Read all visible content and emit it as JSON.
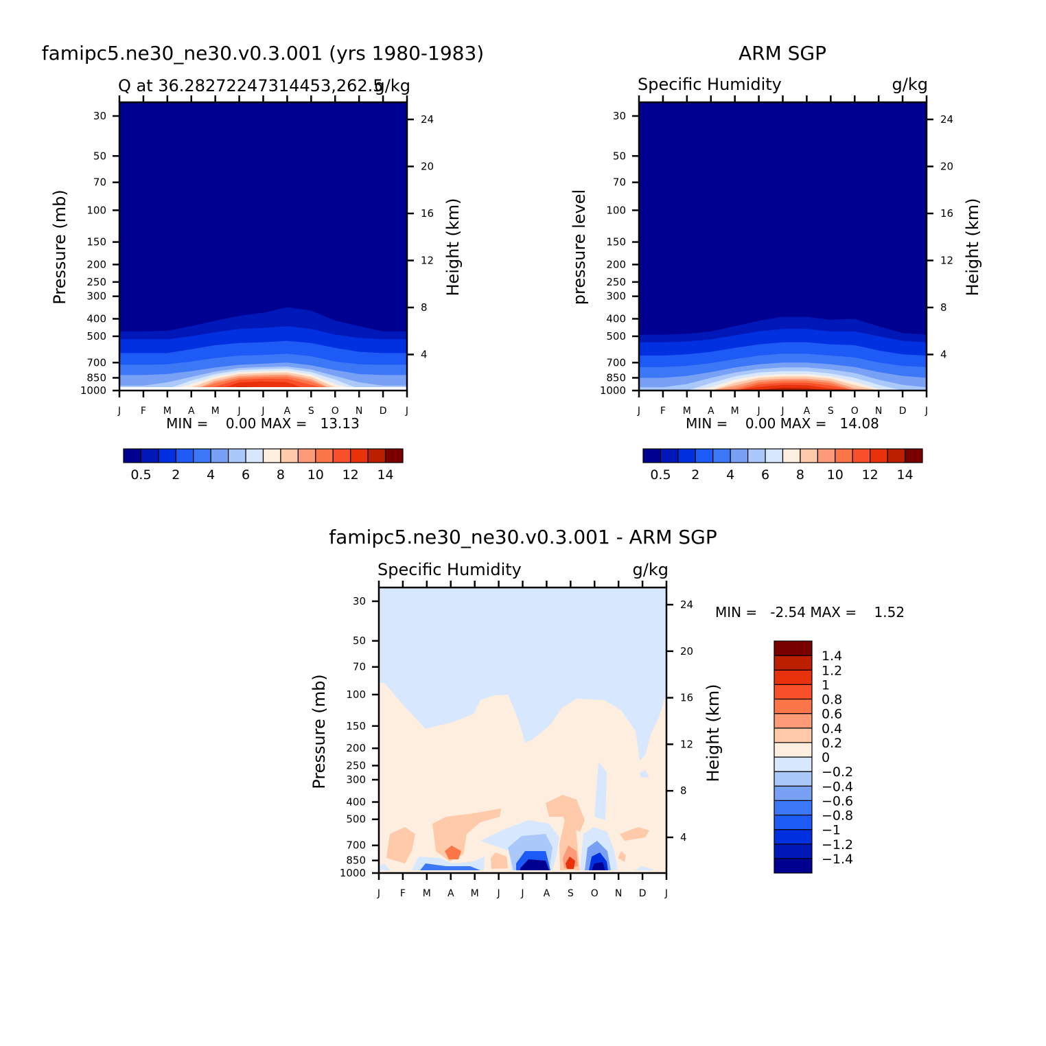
{
  "figure": {
    "panel_model": {
      "title": "famipc5.ne30_ne30.v0.3.001 (yrs 1980-1983)",
      "left_subtitle": "Q at 36.28272247314453,262.5",
      "right_subtitle": "g/kg",
      "ylabel_left": "Pressure (mb)",
      "ylabel_right": "Height (km)",
      "min_max_text": "MIN =    0.00 MAX =   13.13"
    },
    "panel_obs": {
      "title": "ARM SGP",
      "left_subtitle": "Specific Humidity",
      "right_subtitle": "g/kg",
      "ylabel_left": "pressure level",
      "ylabel_right": "Height (km)",
      "min_max_text": "MIN =    0.00 MAX =   14.08"
    },
    "panel_diff": {
      "title": "famipc5.ne30_ne30.v0.3.001 - ARM SGP",
      "left_subtitle": "Specific Humidity",
      "right_subtitle": "g/kg",
      "ylabel_left": "Pressure (mb)",
      "ylabel_right": "Height (km)",
      "min_max_text": "MIN =   -2.54 MAX =    1.52"
    }
  },
  "chart_data": [
    {
      "type": "heatmap",
      "title": "famipc5.ne30_ne30.v0.3.001 (yrs 1980-1983)",
      "variable": "Q at 36.28272247314453,262.5",
      "units": "g/kg",
      "xlabel": "",
      "ylabel": "Pressure (mb)",
      "ylabel_right": "Height (km)",
      "x_ticks": [
        "J",
        "F",
        "M",
        "A",
        "M",
        "J",
        "J",
        "A",
        "S",
        "O",
        "N",
        "D",
        "J"
      ],
      "y_ticks": [
        30,
        50,
        70,
        100,
        150,
        200,
        250,
        300,
        400,
        500,
        700,
        850,
        1000
      ],
      "y_right_ticks": [
        4,
        8,
        12,
        16,
        20,
        24
      ],
      "y_scale": "log pressure",
      "min": 0.0,
      "max": 13.13,
      "contour_levels": [
        0.5,
        1,
        2,
        3,
        4,
        5,
        6,
        7,
        8,
        9,
        10,
        11,
        12,
        13,
        14
      ],
      "colorbar_labels": [
        "0.5",
        "2",
        "4",
        "6",
        "8",
        "10",
        "12",
        "14"
      ],
      "colors": [
        "#000090",
        "#0018b8",
        "#0030e0",
        "#1e5af5",
        "#3c78f5",
        "#78a0f5",
        "#aac8fa",
        "#d7e8fe",
        "#feeee0",
        "#fecaaa",
        "#fd9a78",
        "#fb7648",
        "#f8502a",
        "#e8320c",
        "#bc2000",
        "#7a0000"
      ],
      "contour_lines_pressure_mb": [
        {
          "level": 0.5,
          "p": [
            470,
            470,
            465,
            440,
            410,
            385,
            370,
            345,
            360,
            410,
            440,
            470,
            470
          ]
        },
        {
          "level": 1,
          "p": [
            520,
            520,
            520,
            500,
            475,
            455,
            450,
            440,
            455,
            490,
            510,
            520,
            520
          ]
        },
        {
          "level": 2,
          "p": [
            620,
            620,
            620,
            590,
            560,
            545,
            540,
            530,
            545,
            580,
            610,
            620,
            620
          ]
        },
        {
          "level": 3,
          "p": [
            720,
            720,
            715,
            690,
            660,
            640,
            635,
            625,
            645,
            690,
            715,
            720,
            720
          ]
        },
        {
          "level": 4,
          "p": [
            820,
            820,
            810,
            780,
            745,
            720,
            710,
            700,
            725,
            770,
            810,
            820,
            820
          ]
        },
        {
          "level": 5,
          "p": [
            940,
            940,
            900,
            840,
            785,
            750,
            740,
            735,
            765,
            830,
            900,
            940,
            940
          ]
        },
        {
          "level": 6,
          "p": [
            1000,
            1000,
            980,
            880,
            810,
            770,
            760,
            755,
            790,
            870,
            980,
            1000,
            1000
          ]
        },
        {
          "level": 7,
          "p": [
            1000,
            1000,
            1000,
            920,
            835,
            790,
            780,
            775,
            815,
            920,
            1000,
            1000,
            1000
          ]
        },
        {
          "level": 8,
          "p": [
            1000,
            1000,
            1000,
            960,
            860,
            810,
            800,
            795,
            840,
            960,
            1000,
            1000,
            1000
          ]
        },
        {
          "level": 9,
          "p": [
            1000,
            1000,
            1000,
            1000,
            885,
            830,
            820,
            815,
            865,
            1000,
            1000,
            1000,
            1000
          ]
        },
        {
          "level": 10,
          "p": [
            1000,
            1000,
            1000,
            1000,
            910,
            850,
            840,
            835,
            890,
            1000,
            1000,
            1000,
            1000
          ]
        },
        {
          "level": 11,
          "p": [
            1000,
            1000,
            1000,
            1000,
            950,
            870,
            860,
            860,
            930,
            1000,
            1000,
            1000,
            1000
          ]
        },
        {
          "level": 12,
          "p": [
            1000,
            1000,
            1000,
            1000,
            1000,
            900,
            890,
            900,
            1000,
            1000,
            1000,
            1000,
            1000
          ]
        },
        {
          "level": 13,
          "p": [
            1000,
            1000,
            1000,
            1000,
            1000,
            950,
            960,
            1000,
            1000,
            1000,
            1000,
            1000,
            1000
          ]
        }
      ]
    },
    {
      "type": "heatmap",
      "title": "ARM SGP",
      "variable": "Specific Humidity",
      "units": "g/kg",
      "xlabel": "",
      "ylabel": "pressure level",
      "ylabel_right": "Height (km)",
      "x_ticks": [
        "J",
        "F",
        "M",
        "A",
        "M",
        "J",
        "J",
        "A",
        "S",
        "O",
        "N",
        "D",
        "J"
      ],
      "y_ticks": [
        30,
        50,
        70,
        100,
        150,
        200,
        250,
        300,
        400,
        500,
        700,
        850,
        1000
      ],
      "y_right_ticks": [
        4,
        8,
        12,
        16,
        20,
        24
      ],
      "y_scale": "log pressure",
      "min": 0.0,
      "max": 14.08,
      "contour_levels": [
        0.5,
        1,
        2,
        3,
        4,
        5,
        6,
        7,
        8,
        9,
        10,
        11,
        12,
        13,
        14
      ],
      "colorbar_labels": [
        "0.5",
        "2",
        "4",
        "6",
        "8",
        "10",
        "12",
        "14"
      ],
      "colors": [
        "#000090",
        "#0018b8",
        "#0030e0",
        "#1e5af5",
        "#3c78f5",
        "#78a0f5",
        "#aac8fa",
        "#d7e8fe",
        "#feeee0",
        "#fecaaa",
        "#fd9a78",
        "#fb7648",
        "#f8502a",
        "#e8320c",
        "#bc2000",
        "#7a0000"
      ],
      "contour_lines_pressure_mb": [
        {
          "level": 0.5,
          "p": [
            490,
            490,
            485,
            470,
            440,
            410,
            390,
            390,
            405,
            400,
            440,
            480,
            490
          ]
        },
        {
          "level": 1,
          "p": [
            540,
            540,
            535,
            520,
            495,
            470,
            455,
            455,
            470,
            470,
            500,
            530,
            540
          ]
        },
        {
          "level": 2,
          "p": [
            640,
            640,
            630,
            610,
            580,
            555,
            540,
            540,
            555,
            560,
            600,
            630,
            640
          ]
        },
        {
          "level": 3,
          "p": [
            740,
            740,
            730,
            705,
            670,
            640,
            625,
            625,
            640,
            655,
            700,
            730,
            740
          ]
        },
        {
          "level": 4,
          "p": [
            850,
            850,
            830,
            790,
            745,
            715,
            700,
            700,
            715,
            740,
            790,
            830,
            850
          ]
        },
        {
          "level": 5,
          "p": [
            960,
            960,
            920,
            850,
            795,
            760,
            745,
            745,
            765,
            800,
            870,
            930,
            960
          ]
        },
        {
          "level": 6,
          "p": [
            1000,
            1000,
            1000,
            910,
            835,
            795,
            780,
            780,
            805,
            850,
            930,
            1000,
            1000
          ]
        },
        {
          "level": 7,
          "p": [
            1000,
            1000,
            1000,
            960,
            870,
            825,
            810,
            810,
            835,
            895,
            980,
            1000,
            1000
          ]
        },
        {
          "level": 8,
          "p": [
            1000,
            1000,
            1000,
            1000,
            905,
            850,
            835,
            835,
            860,
            935,
            1000,
            1000,
            1000
          ]
        },
        {
          "level": 9,
          "p": [
            1000,
            1000,
            1000,
            1000,
            940,
            875,
            860,
            860,
            885,
            975,
            1000,
            1000,
            1000
          ]
        },
        {
          "level": 10,
          "p": [
            1000,
            1000,
            1000,
            1000,
            975,
            900,
            880,
            880,
            910,
            1000,
            1000,
            1000,
            1000
          ]
        },
        {
          "level": 11,
          "p": [
            1000,
            1000,
            1000,
            1000,
            1000,
            925,
            905,
            905,
            940,
            1000,
            1000,
            1000,
            1000
          ]
        },
        {
          "level": 12,
          "p": [
            1000,
            1000,
            1000,
            1000,
            1000,
            955,
            930,
            935,
            975,
            1000,
            1000,
            1000,
            1000
          ]
        },
        {
          "level": 13,
          "p": [
            1000,
            1000,
            1000,
            1000,
            1000,
            990,
            965,
            970,
            1000,
            1000,
            1000,
            1000,
            1000
          ]
        },
        {
          "level": 14,
          "p": [
            1000,
            1000,
            1000,
            1000,
            1000,
            1000,
            995,
            1000,
            1000,
            1000,
            1000,
            1000,
            1000
          ]
        }
      ]
    },
    {
      "type": "heatmap",
      "title": "famipc5.ne30_ne30.v0.3.001 - ARM SGP",
      "variable": "Specific Humidity",
      "units": "g/kg",
      "xlabel": "",
      "ylabel": "Pressure (mb)",
      "ylabel_right": "Height (km)",
      "x_ticks": [
        "J",
        "F",
        "M",
        "A",
        "M",
        "J",
        "J",
        "A",
        "S",
        "O",
        "N",
        "D",
        "J"
      ],
      "y_ticks": [
        30,
        50,
        70,
        100,
        150,
        200,
        250,
        300,
        400,
        500,
        700,
        850,
        1000
      ],
      "y_right_ticks": [
        4,
        8,
        12,
        16,
        20,
        24
      ],
      "y_scale": "log pressure",
      "min": -2.54,
      "max": 1.52,
      "contour_levels": [
        -1.4,
        -1.2,
        -1,
        -0.8,
        -0.6,
        -0.4,
        -0.2,
        0,
        0.2,
        0.4,
        0.6,
        0.8,
        1,
        1.2,
        1.4
      ],
      "colorbar_labels": [
        "1.4",
        "1.2",
        "1",
        "0.8",
        "0.6",
        "0.4",
        "0.2",
        "0",
        "−0.2",
        "−0.4",
        "−0.6",
        "−0.8",
        "−1",
        "−1.2",
        "−1.4"
      ],
      "colors": [
        "#000090",
        "#0018b8",
        "#0030e0",
        "#1e5af5",
        "#3c78f5",
        "#78a0f5",
        "#aac8fa",
        "#d7e8fe",
        "#feeee0",
        "#fecaaa",
        "#fd9a78",
        "#fb7648",
        "#f8502a",
        "#e8320c",
        "#bc2000",
        "#7a0000"
      ],
      "zero_contour_pressure_mb": [
        {
          "x": 0.0,
          "p": 85
        },
        {
          "x": 1.5,
          "p": 120
        },
        {
          "x": 2.0,
          "p": 150
        },
        {
          "x": 3.0,
          "p": 135
        },
        {
          "x": 4.0,
          "p": 100
        },
        {
          "x": 5.0,
          "p": 105
        },
        {
          "x": 5.8,
          "p": 180
        },
        {
          "x": 7.0,
          "p": 100
        },
        {
          "x": 8.8,
          "p": 120
        },
        {
          "x": 10.0,
          "p": 140
        },
        {
          "x": 11.0,
          "p": 240
        },
        {
          "x": 12.0,
          "p": 90
        }
      ]
    }
  ]
}
